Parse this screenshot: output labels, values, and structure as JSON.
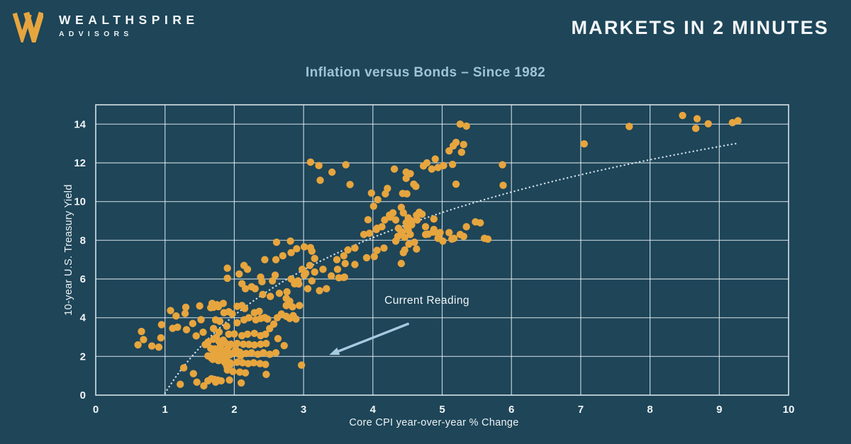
{
  "header": {
    "brand_line1": "WEALTHSPIRE",
    "brand_line2": "ADVISORS",
    "banner_title": "MARKETS IN 2 MINUTES"
  },
  "colors": {
    "background": "#1E4558",
    "gold": "#E7A53E",
    "title_blue": "#A0C3D7",
    "grid": "#EBF2F6",
    "text_light": "#F2F6F8",
    "trend": "#D9E4EE",
    "arrow": "#A9C9E2"
  },
  "chart_data": {
    "type": "scatter",
    "title": "Inflation versus Bonds – Since 1982",
    "xlabel": "Core CPI year-over-year % Change",
    "ylabel": "10-year U.S. Treasury Yield",
    "xlim": [
      0,
      10
    ],
    "ylim": [
      0,
      15
    ],
    "x_ticks": [
      0,
      1,
      2,
      3,
      4,
      5,
      6,
      7,
      8,
      9,
      10
    ],
    "y_ticks": [
      0,
      2,
      4,
      6,
      8,
      10,
      12,
      14
    ],
    "grid": true,
    "legend": "none",
    "point_color": "#E7A53E",
    "point_radius": 5.2,
    "points": [
      [
        8.47,
        14.45
      ],
      [
        8.68,
        14.28
      ],
      [
        8.84,
        14.02
      ],
      [
        8.66,
        13.78
      ],
      [
        9.19,
        14.08
      ],
      [
        9.27,
        14.18
      ],
      [
        7.7,
        13.88
      ],
      [
        7.05,
        12.98
      ],
      [
        5.26,
        14.0
      ],
      [
        5.35,
        13.9
      ],
      [
        5.16,
        12.88
      ],
      [
        5.2,
        13.06
      ],
      [
        5.31,
        12.95
      ],
      [
        5.28,
        12.55
      ],
      [
        5.1,
        12.62
      ],
      [
        4.9,
        12.2
      ],
      [
        4.78,
        12.0
      ],
      [
        4.73,
        11.84
      ],
      [
        4.85,
        11.68
      ],
      [
        4.94,
        11.76
      ],
      [
        5.02,
        11.86
      ],
      [
        5.15,
        11.92
      ],
      [
        5.87,
        11.9
      ],
      [
        3.1,
        12.04
      ],
      [
        3.22,
        11.86
      ],
      [
        3.61,
        11.9
      ],
      [
        3.41,
        11.52
      ],
      [
        4.31,
        11.68
      ],
      [
        4.48,
        11.52
      ],
      [
        4.54,
        11.44
      ],
      [
        4.48,
        11.2
      ],
      [
        4.59,
        10.9
      ],
      [
        4.62,
        10.78
      ],
      [
        4.43,
        10.42
      ],
      [
        4.49,
        10.4
      ],
      [
        4.18,
        10.4
      ],
      [
        4.21,
        10.68
      ],
      [
        5.2,
        10.9
      ],
      [
        5.88,
        10.84
      ],
      [
        3.24,
        11.1
      ],
      [
        3.67,
        10.88
      ],
      [
        3.98,
        10.44
      ],
      [
        4.07,
        10.1
      ],
      [
        4.01,
        9.76
      ],
      [
        3.93,
        9.06
      ],
      [
        4.17,
        9.05
      ],
      [
        4.25,
        9.2
      ],
      [
        4.29,
        9.42
      ],
      [
        4.24,
        9.3
      ],
      [
        4.33,
        9.05
      ],
      [
        4.41,
        9.7
      ],
      [
        4.44,
        9.42
      ],
      [
        4.51,
        9.16
      ],
      [
        4.63,
        9.3
      ],
      [
        4.67,
        9.45
      ],
      [
        4.71,
        9.35
      ],
      [
        4.64,
        9.05
      ],
      [
        4.56,
        9.0
      ],
      [
        4.88,
        9.1
      ],
      [
        4.48,
        8.9
      ],
      [
        4.05,
        8.56
      ],
      [
        3.95,
        8.36
      ],
      [
        4.56,
        8.8
      ],
      [
        4.37,
        8.62
      ],
      [
        4.41,
        8.45
      ],
      [
        4.51,
        8.52
      ],
      [
        4.54,
        8.3
      ],
      [
        4.36,
        8.2
      ],
      [
        4.46,
        8.15
      ],
      [
        4.88,
        8.56
      ],
      [
        4.76,
        8.3
      ],
      [
        4.95,
        8.2
      ],
      [
        4.8,
        8.32
      ],
      [
        4.97,
        8.4
      ],
      [
        5.1,
        8.4
      ],
      [
        5.14,
        8.06
      ],
      [
        5.26,
        8.3
      ],
      [
        5.31,
        8.2
      ],
      [
        5.35,
        8.7
      ],
      [
        5.48,
        8.95
      ],
      [
        5.55,
        8.9
      ],
      [
        5.61,
        8.1
      ],
      [
        5.66,
        8.06
      ],
      [
        5.17,
        8.1
      ],
      [
        3.87,
        8.3
      ],
      [
        4.06,
        8.62
      ],
      [
        4.13,
        8.7
      ],
      [
        4.33,
        7.96
      ],
      [
        4.42,
        8.4
      ],
      [
        4.49,
        8.7
      ],
      [
        4.76,
        8.7
      ],
      [
        4.87,
        8.42
      ],
      [
        4.94,
        8.1
      ],
      [
        5.01,
        7.96
      ],
      [
        2.61,
        7.9
      ],
      [
        2.81,
        7.96
      ],
      [
        2.9,
        7.56
      ],
      [
        3.01,
        7.66
      ],
      [
        3.1,
        7.62
      ],
      [
        3.12,
        7.44
      ],
      [
        2.82,
        7.36
      ],
      [
        2.7,
        7.2
      ],
      [
        2.6,
        7.0
      ],
      [
        2.44,
        7.0
      ],
      [
        3.16,
        7.06
      ],
      [
        4.52,
        7.8
      ],
      [
        4.6,
        7.9
      ],
      [
        4.63,
        7.55
      ],
      [
        4.46,
        7.5
      ],
      [
        4.44,
        7.36
      ],
      [
        4.06,
        7.48
      ],
      [
        4.16,
        7.6
      ],
      [
        3.74,
        7.6
      ],
      [
        3.91,
        7.1
      ],
      [
        4.02,
        7.16
      ],
      [
        3.74,
        6.75
      ],
      [
        3.58,
        7.2
      ],
      [
        3.6,
        6.8
      ],
      [
        3.48,
        7.0
      ],
      [
        3.64,
        7.5
      ],
      [
        4.41,
        6.8
      ],
      [
        3.09,
        6.7
      ],
      [
        2.14,
        6.7
      ],
      [
        2.19,
        6.5
      ],
      [
        1.9,
        6.56
      ],
      [
        2.07,
        6.26
      ],
      [
        2.38,
        6.1
      ],
      [
        2.59,
        6.2
      ],
      [
        3.03,
        6.3
      ],
      [
        2.98,
        6.5
      ],
      [
        3.16,
        6.36
      ],
      [
        3.28,
        6.5
      ],
      [
        3.4,
        6.16
      ],
      [
        3.51,
        6.06
      ],
      [
        3.59,
        6.1
      ],
      [
        2.82,
        6.0
      ],
      [
        3.01,
        6.2
      ],
      [
        3.49,
        6.5
      ],
      [
        1.9,
        6.04
      ],
      [
        3.58,
        6.08
      ],
      [
        2.11,
        5.76
      ],
      [
        2.16,
        5.5
      ],
      [
        2.25,
        5.6
      ],
      [
        2.3,
        5.5
      ],
      [
        2.4,
        5.86
      ],
      [
        2.55,
        5.9
      ],
      [
        2.92,
        5.9
      ],
      [
        2.87,
        5.75
      ],
      [
        3.12,
        5.9
      ],
      [
        3.23,
        5.4
      ],
      [
        3.33,
        5.5
      ],
      [
        2.93,
        5.74
      ],
      [
        3.06,
        5.5
      ],
      [
        2.41,
        5.2
      ],
      [
        2.52,
        5.1
      ],
      [
        2.65,
        5.26
      ],
      [
        2.76,
        5.34
      ],
      [
        2.75,
        5.0
      ],
      [
        2.75,
        4.63
      ],
      [
        2.8,
        4.85
      ],
      [
        2.84,
        4.56
      ],
      [
        2.94,
        4.63
      ],
      [
        1.68,
        4.74
      ],
      [
        1.7,
        4.54
      ],
      [
        1.75,
        4.67
      ],
      [
        1.84,
        4.74
      ],
      [
        1.5,
        4.61
      ],
      [
        1.3,
        4.54
      ],
      [
        1.29,
        4.22
      ],
      [
        1.08,
        4.37
      ],
      [
        1.16,
        4.09
      ],
      [
        1.66,
        4.52
      ],
      [
        1.77,
        4.57
      ],
      [
        2.11,
        4.63
      ],
      [
        2.04,
        4.59
      ],
      [
        2.15,
        4.48
      ],
      [
        2.29,
        4.26
      ],
      [
        2.36,
        4.33
      ],
      [
        1.85,
        4.26
      ],
      [
        1.92,
        4.31
      ],
      [
        2.44,
        4.01
      ],
      [
        2.48,
        3.93
      ],
      [
        2.38,
        3.96
      ],
      [
        2.31,
        3.89
      ],
      [
        2.21,
        4.0
      ],
      [
        2.14,
        3.89
      ],
      [
        1.97,
        4.19
      ],
      [
        2.62,
        4.0
      ],
      [
        2.68,
        4.19
      ],
      [
        2.75,
        4.07
      ],
      [
        2.8,
        3.96
      ],
      [
        2.85,
        4.11
      ],
      [
        2.89,
        3.93
      ],
      [
        1.11,
        3.45
      ],
      [
        1.18,
        3.51
      ],
      [
        1.31,
        3.38
      ],
      [
        1.4,
        3.7
      ],
      [
        1.52,
        3.9
      ],
      [
        1.45,
        3.06
      ],
      [
        1.55,
        3.25
      ],
      [
        2.04,
        3.74
      ],
      [
        1.89,
        3.56
      ],
      [
        1.79,
        3.81
      ],
      [
        1.73,
        3.89
      ],
      [
        1.7,
        3.44
      ],
      [
        1.78,
        3.26
      ],
      [
        1.92,
        3.15
      ],
      [
        2.0,
        3.16
      ],
      [
        2.11,
        3.07
      ],
      [
        2.19,
        3.15
      ],
      [
        2.29,
        3.19
      ],
      [
        2.38,
        3.07
      ],
      [
        2.45,
        3.15
      ],
      [
        2.51,
        3.44
      ],
      [
        2.57,
        3.67
      ],
      [
        0.95,
        3.64
      ],
      [
        0.66,
        3.29
      ],
      [
        2.63,
        2.92
      ],
      [
        2.72,
        2.56
      ],
      [
        0.61,
        2.6
      ],
      [
        0.69,
        2.87
      ],
      [
        0.81,
        2.54
      ],
      [
        0.91,
        2.48
      ],
      [
        0.94,
        2.96
      ],
      [
        1.58,
        2.61
      ],
      [
        1.62,
        2.74
      ],
      [
        1.7,
        2.89
      ],
      [
        1.78,
        2.78
      ],
      [
        1.87,
        2.7
      ],
      [
        1.95,
        2.63
      ],
      [
        2.04,
        2.67
      ],
      [
        2.13,
        2.63
      ],
      [
        2.21,
        2.62
      ],
      [
        2.29,
        2.59
      ],
      [
        2.38,
        2.63
      ],
      [
        2.46,
        2.67
      ],
      [
        1.66,
        2.41
      ],
      [
        1.74,
        2.33
      ],
      [
        1.83,
        2.26
      ],
      [
        1.91,
        2.22
      ],
      [
        1.99,
        2.19
      ],
      [
        2.08,
        2.22
      ],
      [
        2.17,
        2.15
      ],
      [
        2.25,
        2.19
      ],
      [
        2.34,
        2.11
      ],
      [
        2.42,
        2.19
      ],
      [
        2.51,
        2.11
      ],
      [
        2.6,
        2.19
      ],
      [
        1.92,
        2.52
      ],
      [
        2.02,
        2.35
      ],
      [
        1.89,
        2.35
      ],
      [
        1.85,
        2.22
      ],
      [
        2.05,
        2.15
      ],
      [
        2.09,
        2.03
      ],
      [
        1.94,
        2.09
      ],
      [
        1.69,
        1.85
      ],
      [
        1.77,
        1.78
      ],
      [
        1.86,
        1.7
      ],
      [
        1.94,
        1.67
      ],
      [
        2.04,
        1.7
      ],
      [
        2.12,
        1.67
      ],
      [
        2.2,
        1.63
      ],
      [
        2.28,
        1.67
      ],
      [
        2.37,
        1.63
      ],
      [
        2.45,
        1.59
      ],
      [
        1.94,
        1.57
      ],
      [
        1.89,
        1.51
      ],
      [
        1.62,
        2.03
      ],
      [
        1.67,
        1.92
      ],
      [
        1.72,
        1.9
      ],
      [
        1.77,
        1.87
      ],
      [
        1.84,
        1.92
      ],
      [
        1.89,
        1.96
      ],
      [
        1.72,
        2.39
      ],
      [
        1.75,
        2.13
      ],
      [
        1.8,
        2.15
      ],
      [
        1.7,
        2.15
      ],
      [
        1.8,
        2.54
      ],
      [
        1.84,
        2.84
      ],
      [
        1.78,
        2.77
      ],
      [
        1.74,
        2.99
      ],
      [
        1.9,
        1.3
      ],
      [
        1.98,
        1.22
      ],
      [
        2.08,
        1.19
      ],
      [
        2.16,
        1.15
      ],
      [
        2.46,
        1.07
      ],
      [
        1.41,
        1.11
      ],
      [
        1.27,
        1.41
      ],
      [
        2.1,
        0.63
      ],
      [
        1.93,
        0.78
      ],
      [
        1.73,
        0.67
      ],
      [
        1.22,
        0.56
      ],
      [
        1.46,
        0.67
      ],
      [
        1.56,
        0.48
      ],
      [
        1.62,
        0.74
      ],
      [
        1.67,
        0.85
      ],
      [
        1.71,
        0.81
      ],
      [
        1.76,
        0.78
      ],
      [
        1.81,
        0.74
      ]
    ],
    "current_reading_point": {
      "x": 2.97,
      "y": 1.55
    },
    "trendline": {
      "style": "dotted",
      "fit": "logarithmic",
      "a": 5.8,
      "b": 0.1,
      "x_start": 1.0,
      "x_end": 9.25,
      "color": "#D9E4EE"
    },
    "annotation": {
      "label": "Current Reading",
      "text_x": 4.78,
      "text_y": 4.9,
      "arrow": {
        "x1": 4.52,
        "y1": 3.7,
        "x2": 3.37,
        "y2": 2.08
      },
      "color": "#A9C9E2"
    }
  }
}
